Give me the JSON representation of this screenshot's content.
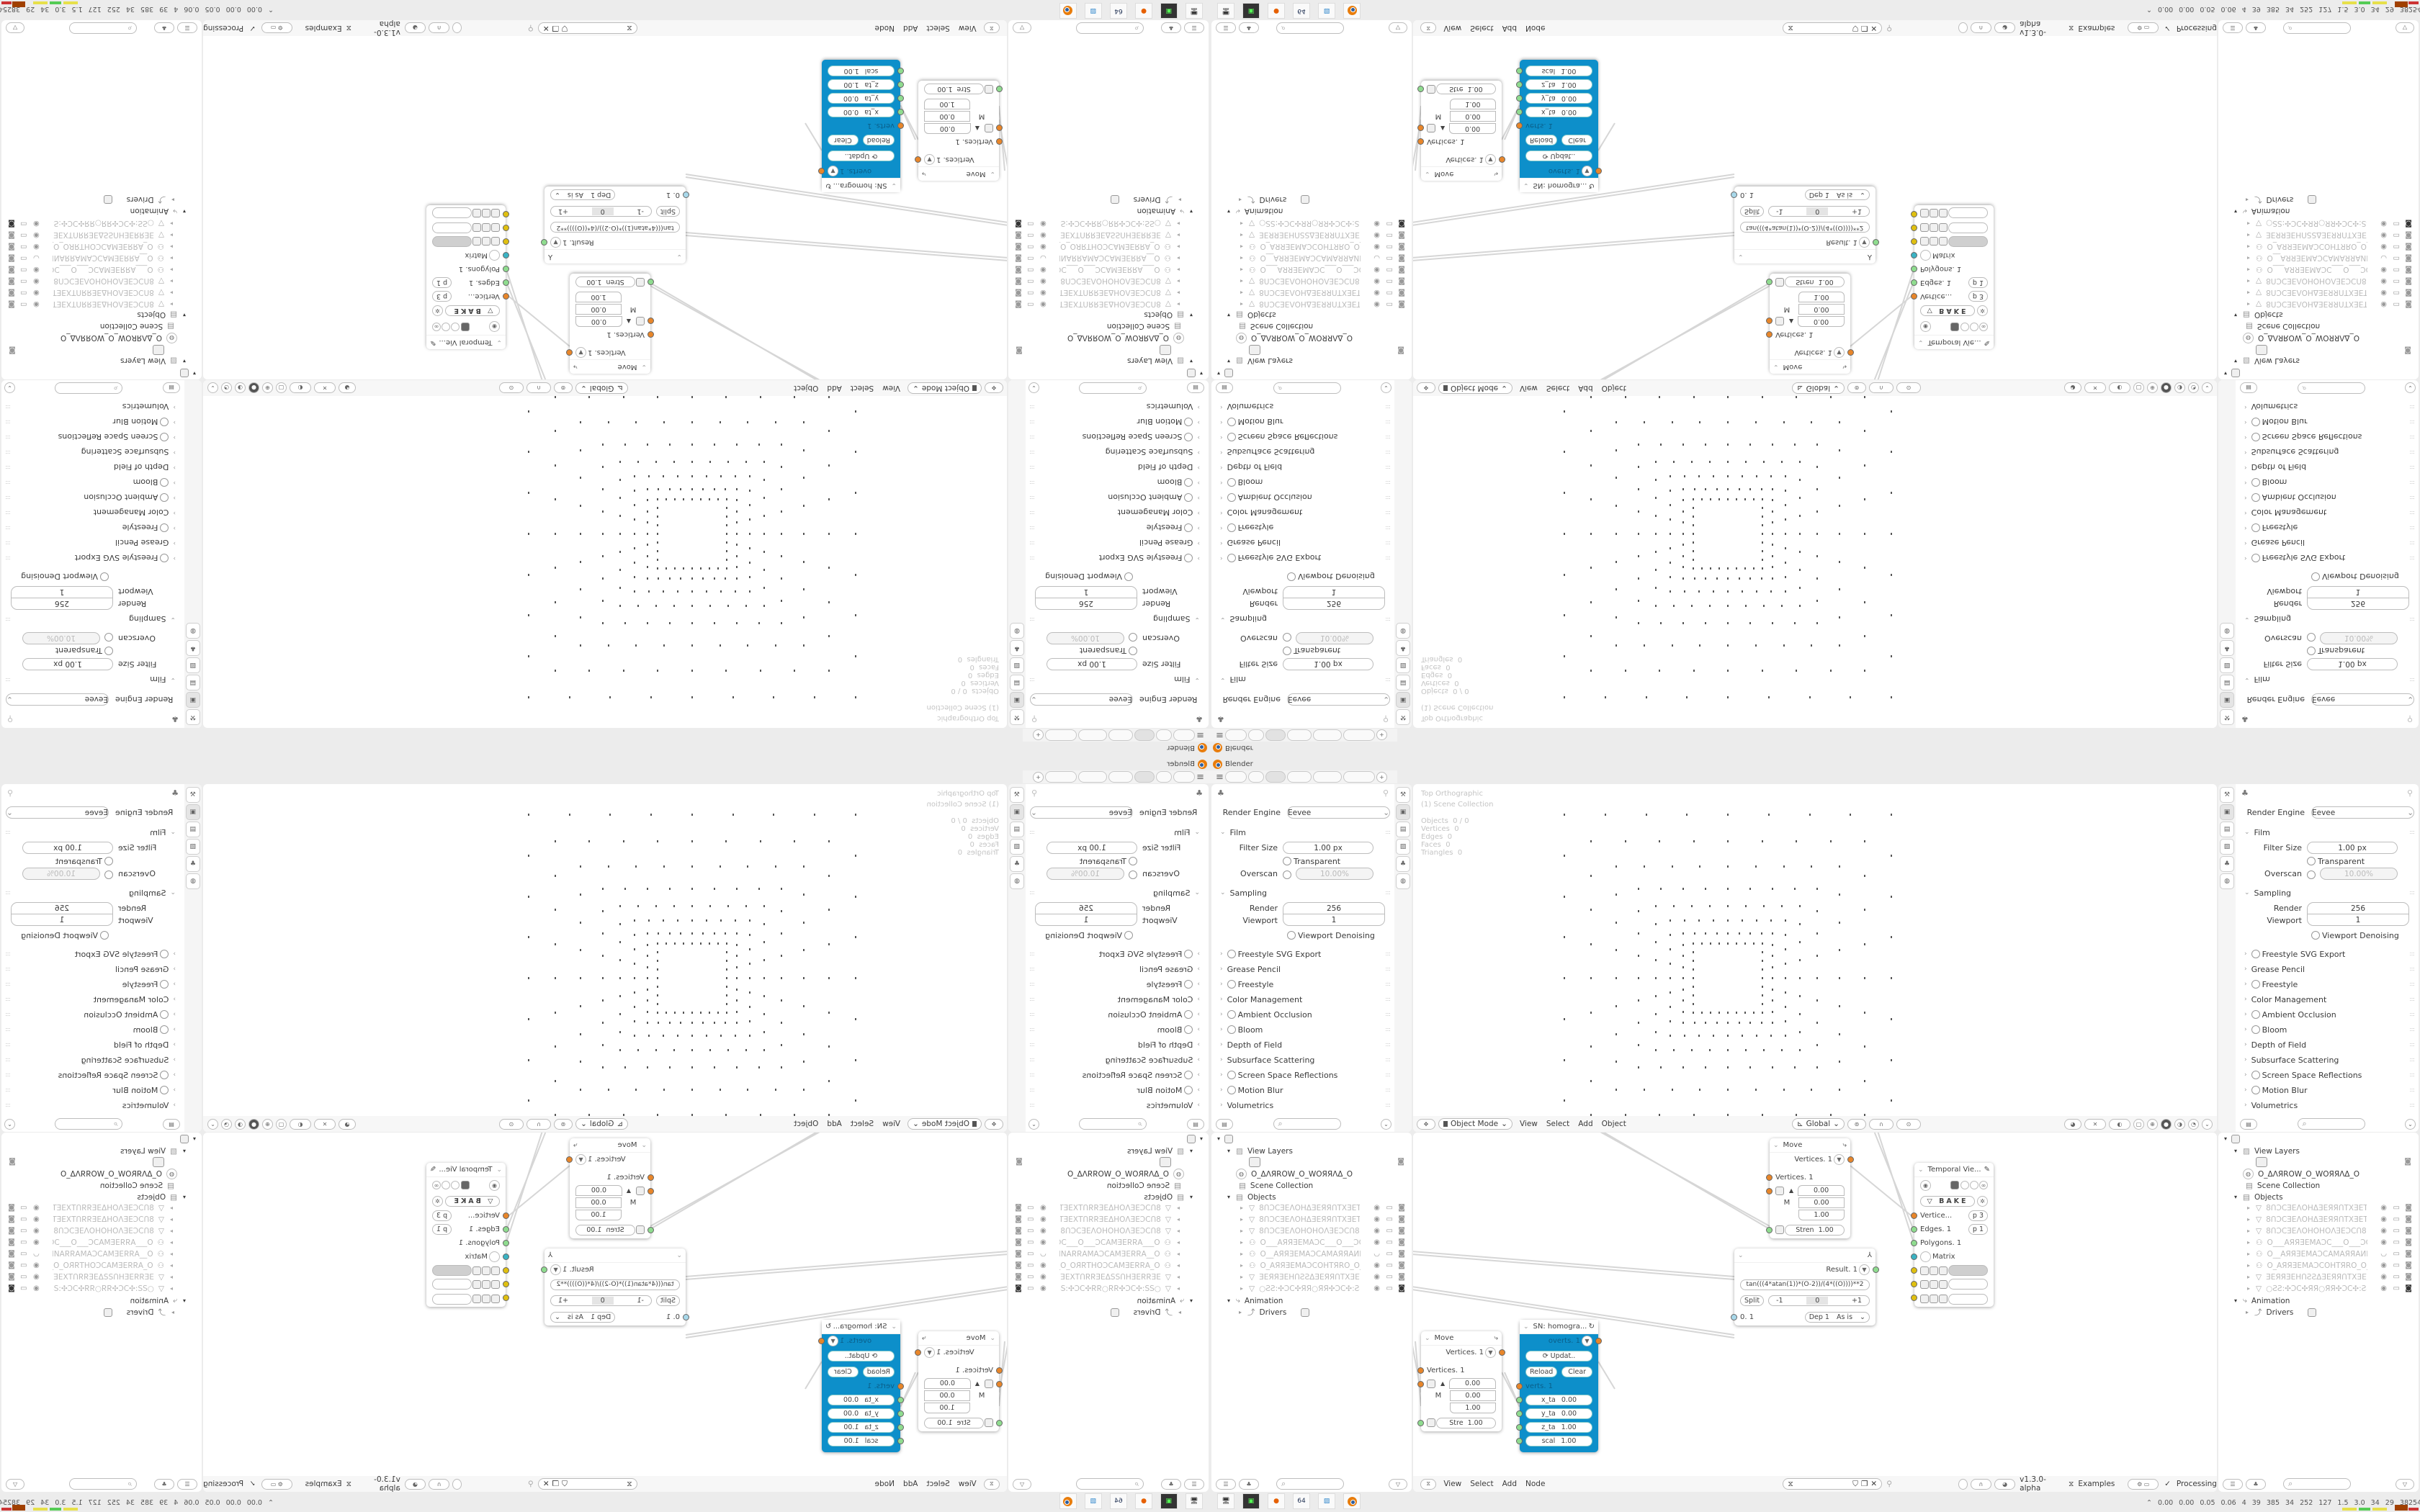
{
  "window": {
    "title": "Blender",
    "add_tab": "+",
    "menu_icon": "hamburger-icon"
  },
  "colors": {
    "accent": "#e87d0d",
    "sn_node": "#0d8fca",
    "socket_vertices": "#e8862a",
    "socket_edges": "#8fdc8f",
    "socket_matrix": "#3bb3c4",
    "socket_color": "#e0c010",
    "socket_number": "#a8d8ea"
  },
  "properties": {
    "render_engine_label": "Render Engine",
    "render_engine_value": "Eevee",
    "film": "Film",
    "filter_size_label": "Filter Size",
    "filter_size_value": "1.00 px",
    "transparent": "Transparent",
    "overscan_label": "Overscan",
    "overscan_value": "10.00%",
    "sampling": "Sampling",
    "render_label": "Render",
    "render_value": "256",
    "viewport_label": "Viewport",
    "viewport_value": "1",
    "viewport_denoising": "Viewport Denoising",
    "sections": [
      {
        "label": "Freestyle SVG Export",
        "checkbox": true
      },
      {
        "label": "Grease Pencil",
        "checkbox": false
      },
      {
        "label": "Freestyle",
        "checkbox": true
      },
      {
        "label": "Color Management",
        "checkbox": false
      },
      {
        "label": "Ambient Occlusion",
        "checkbox": true
      },
      {
        "label": "Bloom",
        "checkbox": true
      },
      {
        "label": "Depth of Field",
        "checkbox": false
      },
      {
        "label": "Subsurface Scattering",
        "checkbox": false
      },
      {
        "label": "Screen Space Reflections",
        "checkbox": true
      },
      {
        "label": "Motion Blur",
        "checkbox": true
      },
      {
        "label": "Volumetrics",
        "checkbox": false
      }
    ]
  },
  "viewport": {
    "view_name": "Top Orthographic",
    "collection": "(1) Scene Collection",
    "stats": [
      {
        "label": "Objects",
        "value": "0 / 0"
      },
      {
        "label": "Vertices",
        "value": "0"
      },
      {
        "label": "Edges",
        "value": "0"
      },
      {
        "label": "Faces",
        "value": "0"
      },
      {
        "label": "Triangles",
        "value": "0"
      }
    ],
    "header": {
      "mode": "Object Mode",
      "menus": [
        "View",
        "Select",
        "Add",
        "Object"
      ],
      "orientation": "Global"
    }
  },
  "outliner": {
    "view_layers": "View Layers",
    "world": "O_ΔΛЯROW_O_WOЯЯΛΔ_O",
    "scene_collection": "Scene Collection",
    "objects": "Objects",
    "items": [
      "8ՈϽCƎΕΛOHΔƎEЯЯՈTXƎETOTƎEXT",
      "8ՈϽCƎΕΛOHΔƎEЯЯՈTXƎETOTƎEX",
      "8ՈϽCƎΕΛOHOHOΛƎEϽCՈ8",
      "O___AЯЯƎEMAϽC___O___ϽCAMƎE",
      "O__AЯЯƎEMAϽCAMAЯЯAИNAՈ__O_",
      "O_AЯЯƎEMAϽCOHTЯRO_O_OЯЯTHC",
      "ƎEЯЯƎEHՈƧƧΔƎEЯЯՈTXƎETOTƎE",
      "○ƧƧ:✣ϽC✣ЯЯ○ЯЯ✣ϽC✣:ƧƧ○"
    ],
    "animation": "Animation",
    "drivers": "Drivers"
  },
  "node_editor": {
    "menus": [
      "View",
      "Select",
      "Add",
      "Node"
    ],
    "version": "v1.3.0-alpha",
    "examples": "Examples",
    "processing": "Processing",
    "move": {
      "title": "Move",
      "out": "Vertices. 1",
      "in": "Vertices. 1",
      "m": "M",
      "vec": [
        "0.00",
        "0.00",
        "1.00"
      ],
      "strength_label": "Stren",
      "strength_value": "1.00"
    },
    "move2": {
      "title": "Move",
      "out": "Vertices. 1",
      "in": "Vertices. 1",
      "m": "M",
      "vec": [
        "0.00",
        "0.00",
        "1.00"
      ],
      "strength_label": "Stre",
      "strength_value": "1.00"
    },
    "formula": {
      "out": "Result. 1",
      "expr": "tan(((4*atan(1))*(O-2))/(4*((O))))**2",
      "split": "Split",
      "minus": "-1",
      "zero": "0",
      "plus": "+1",
      "input": "0. 1",
      "depth": "Dep  1",
      "mode": "As is"
    },
    "temporal": {
      "title": "Temporal Vie...",
      "bake": "BAKE",
      "vertices": "Vertice...",
      "vertices_p": "p  3",
      "edges": "Edges. 1",
      "edges_p": "p  1",
      "polygons": "Polygons. 1",
      "matrix": "Matrix"
    },
    "sn": {
      "title": "SN: homogra...",
      "out": "overts. 1",
      "update": "Updat..",
      "reload": "Reload",
      "clear": "Clear",
      "in": "verts. 1",
      "params": [
        {
          "label": "x_ta",
          "value": "0.00"
        },
        {
          "label": "y_ta",
          "value": "0.00"
        },
        {
          "label": "z_ta",
          "value": "1.00"
        },
        {
          "label": "scal",
          "value": "1.00"
        }
      ]
    }
  },
  "status_bar": {
    "stats": "0.00 0.00 0.05 0.06 4 39 385 34 252 127 1.5 3.0 34 29 38254577"
  },
  "taskbar": {
    "floppy_label": "64",
    "apps": [
      "monitor-settings",
      "terminal",
      "firefox",
      "save",
      "image-viewer",
      "blender"
    ]
  }
}
